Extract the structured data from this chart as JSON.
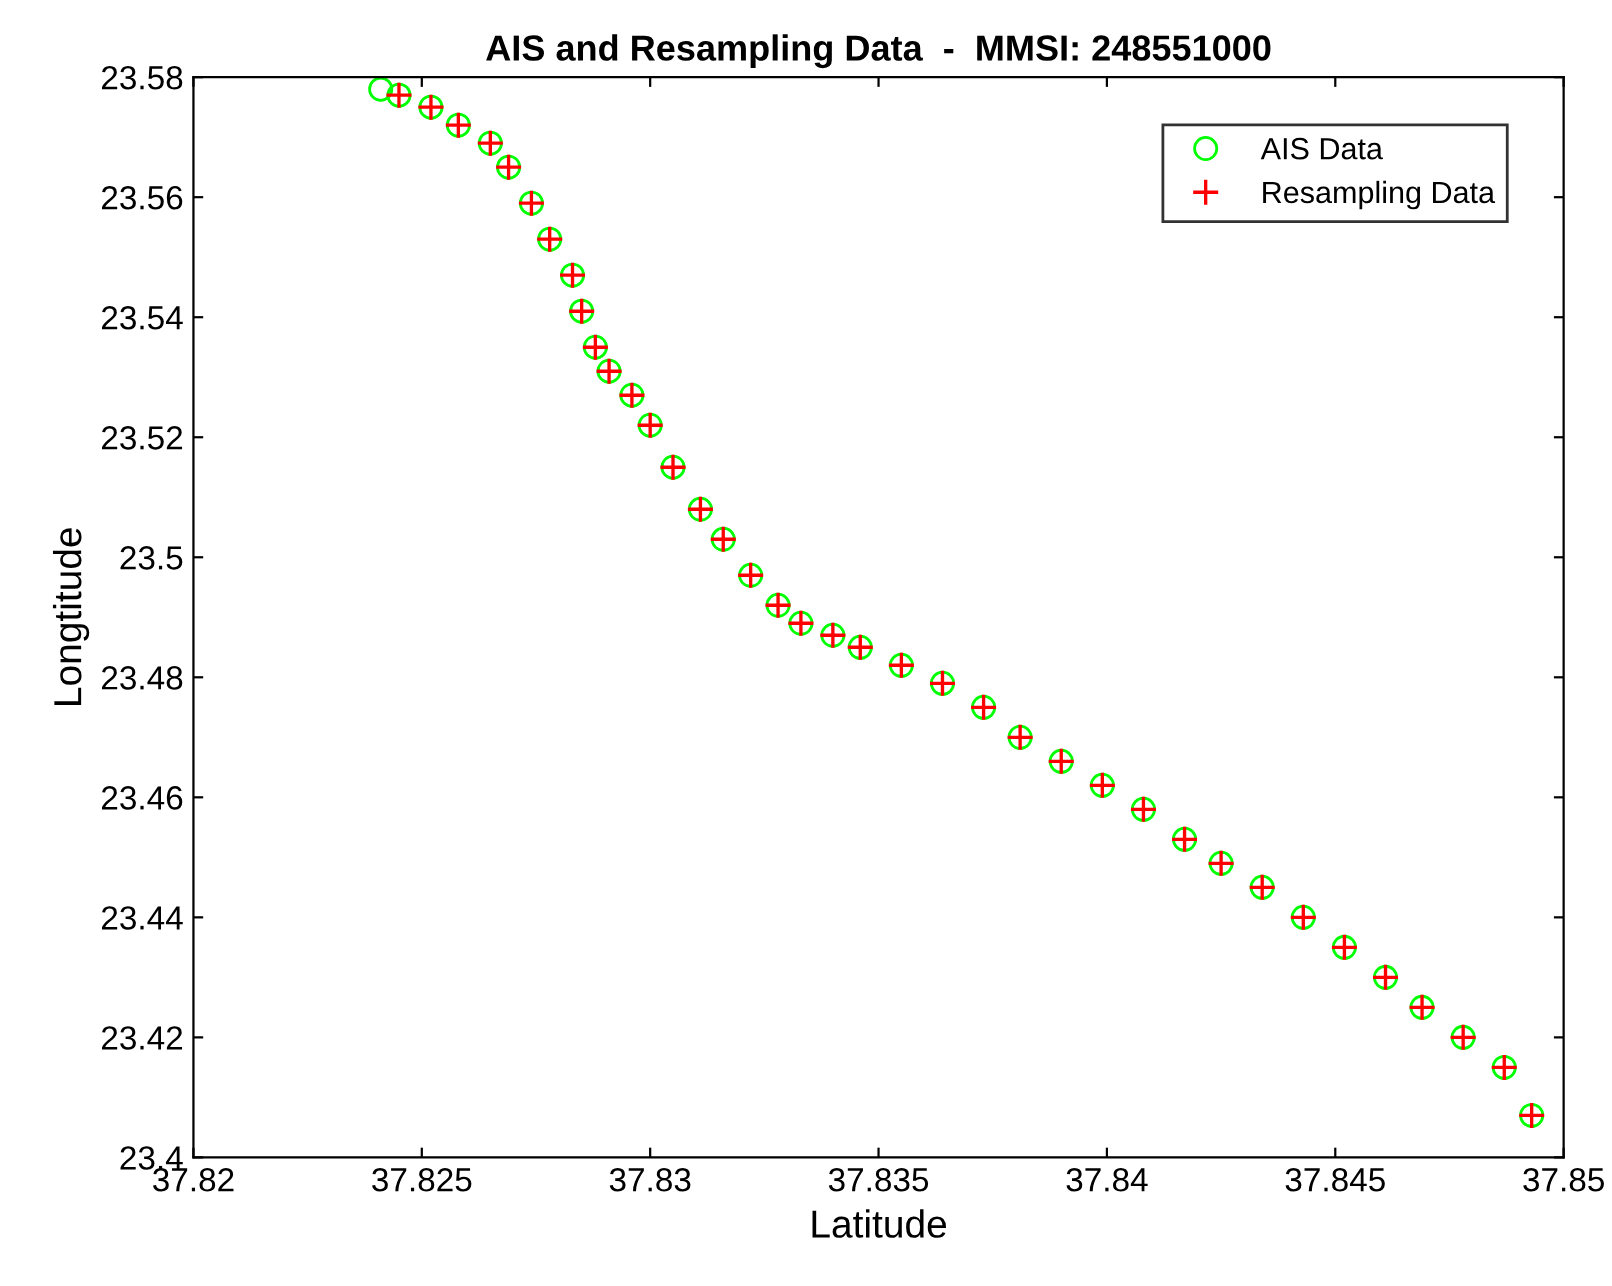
{
  "chart_data": {
    "type": "scatter",
    "title": "AIS and Resampling Data  -  MMSI: 248551000",
    "xlabel": "Latitude",
    "ylabel": "Longtitude",
    "xlim": [
      37.82,
      37.85
    ],
    "xticks": [
      37.82,
      37.825,
      37.83,
      37.835,
      37.84,
      37.845,
      37.85
    ],
    "ylim": [
      23.4,
      23.58
    ],
    "yticks": [
      23.4,
      23.42,
      23.44,
      23.46,
      23.48,
      23.5,
      23.52,
      23.54,
      23.56,
      23.58
    ],
    "grid": false,
    "legend": "top right",
    "series": [
      {
        "name": "AIS Data",
        "color": "#00ff00",
        "marker": "circle",
        "x": [
          37.8241,
          37.8245,
          37.8252,
          37.8258,
          37.8265,
          37.8269,
          37.8274,
          37.8278,
          37.8283,
          37.8285,
          37.8288,
          37.8291,
          37.8296,
          37.83,
          37.8305,
          37.8311,
          37.8316,
          37.8322,
          37.8328,
          37.8333,
          37.834,
          37.8346,
          37.8355,
          37.8364,
          37.8373,
          37.8381,
          37.839,
          37.8399,
          37.8408,
          37.8417,
          37.8425,
          37.8434,
          37.8443,
          37.8452,
          37.8461,
          37.8469,
          37.8478,
          37.8487,
          37.8493
        ],
        "values": [
          23.578,
          23.577,
          23.575,
          23.572,
          23.569,
          23.565,
          23.559,
          23.553,
          23.547,
          23.541,
          23.535,
          23.531,
          23.527,
          23.522,
          23.515,
          23.508,
          23.503,
          23.497,
          23.492,
          23.489,
          23.487,
          23.485,
          23.482,
          23.479,
          23.475,
          23.47,
          23.466,
          23.462,
          23.458,
          23.453,
          23.449,
          23.445,
          23.44,
          23.435,
          23.43,
          23.425,
          23.42,
          23.415,
          23.407
        ]
      },
      {
        "name": "Resampling Data",
        "color": "#ff0000",
        "marker": "cross",
        "x": [
          37.8245,
          37.8252,
          37.8258,
          37.8265,
          37.8269,
          37.8274,
          37.8278,
          37.8283,
          37.8285,
          37.8288,
          37.8291,
          37.8296,
          37.83,
          37.8305,
          37.8311,
          37.8316,
          37.8322,
          37.8328,
          37.8333,
          37.834,
          37.8346,
          37.8355,
          37.8364,
          37.8373,
          37.8381,
          37.839,
          37.8399,
          37.8408,
          37.8417,
          37.8425,
          37.8434,
          37.8443,
          37.8452,
          37.8461,
          37.8469,
          37.8478,
          37.8487,
          37.8493
        ],
        "values": [
          23.577,
          23.575,
          23.572,
          23.569,
          23.565,
          23.559,
          23.553,
          23.547,
          23.541,
          23.535,
          23.531,
          23.527,
          23.522,
          23.515,
          23.508,
          23.503,
          23.497,
          23.492,
          23.489,
          23.487,
          23.485,
          23.482,
          23.479,
          23.475,
          23.47,
          23.466,
          23.462,
          23.458,
          23.453,
          23.449,
          23.445,
          23.44,
          23.435,
          23.43,
          23.425,
          23.42,
          23.415,
          23.407
        ]
      }
    ]
  }
}
